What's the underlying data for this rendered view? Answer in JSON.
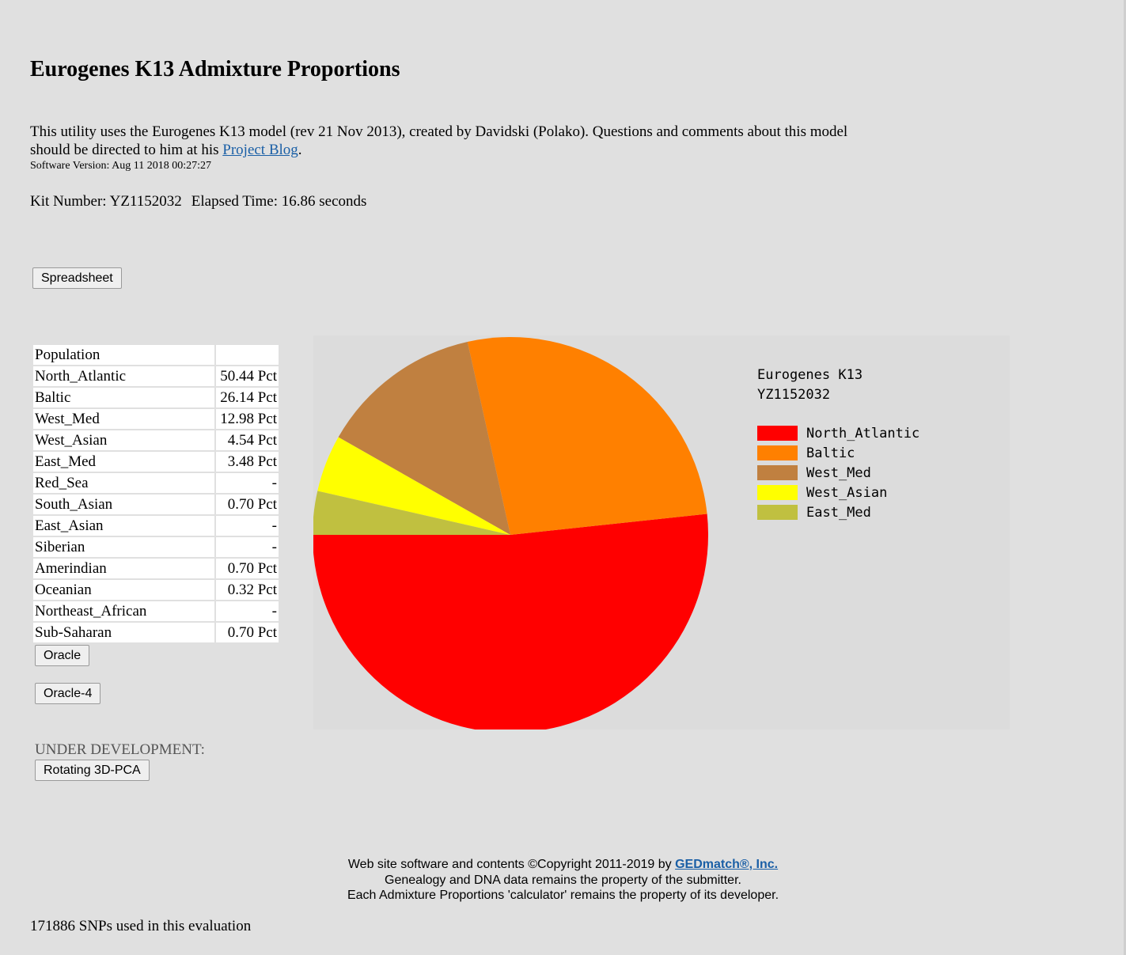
{
  "page": {
    "title": "Eurogenes K13 Admixture Proportions",
    "intro_line1": "This utility uses the Eurogenes K13 model (rev 21 Nov 2013), created by Davidski (Polako). Questions and comments about this model",
    "intro_line2_prefix": "should be directed to him at his ",
    "intro_link": "Project Blog",
    "intro_line2_suffix": ".",
    "version": "Software Version: Aug 11 2018 00:27:27",
    "kit_label": "Kit Number: YZ1152032",
    "elapsed_label": "Elapsed Time: 16.86 seconds"
  },
  "buttons": {
    "spreadsheet": "Spreadsheet",
    "oracle": "Oracle",
    "oracle4": "Oracle-4",
    "rotating": "Rotating 3D-PCA"
  },
  "table": {
    "header": "Population",
    "rows": [
      {
        "name": "North_Atlantic",
        "value": "50.44 Pct"
      },
      {
        "name": "Baltic",
        "value": "26.14 Pct"
      },
      {
        "name": "West_Med",
        "value": "12.98 Pct"
      },
      {
        "name": "West_Asian",
        "value": "4.54 Pct"
      },
      {
        "name": "East_Med",
        "value": "3.48 Pct"
      },
      {
        "name": "Red_Sea",
        "value": "-"
      },
      {
        "name": "South_Asian",
        "value": "0.70 Pct"
      },
      {
        "name": "East_Asian",
        "value": "-"
      },
      {
        "name": "Siberian",
        "value": "-"
      },
      {
        "name": "Amerindian",
        "value": "0.70 Pct"
      },
      {
        "name": "Oceanian",
        "value": "0.32 Pct"
      },
      {
        "name": "Northeast_African",
        "value": "-"
      },
      {
        "name": "Sub-Saharan",
        "value": "0.70 Pct"
      }
    ]
  },
  "under_development": "UNDER DEVELOPMENT:",
  "chart_data": {
    "type": "pie",
    "title": "Eurogenes K13",
    "subtitle": "YZ1152032",
    "legend_position": "right",
    "slices": [
      {
        "label": "North_Atlantic",
        "value": 50.44,
        "color": "#ff0000"
      },
      {
        "label": "Baltic",
        "value": 26.14,
        "color": "#ff8000"
      },
      {
        "label": "West_Med",
        "value": 12.98,
        "color": "#c08040"
      },
      {
        "label": "West_Asian",
        "value": 4.54,
        "color": "#ffff00"
      },
      {
        "label": "East_Med",
        "value": 3.48,
        "color": "#c0c040"
      }
    ]
  },
  "footer": {
    "line1_prefix": "Web site software and contents ©Copyright 2011-2019 by ",
    "line1_link": "GEDmatch®, Inc.",
    "line2": "Genealogy and DNA data remains the property of the submitter.",
    "line3": "Each Admixture Proportions 'calculator' remains the property of its developer."
  },
  "snps": "171886 SNPs used in this evaluation"
}
